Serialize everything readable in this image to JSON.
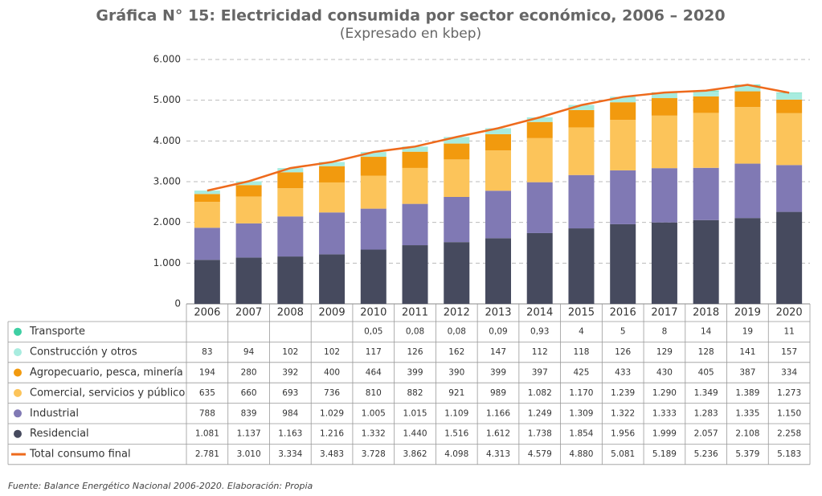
{
  "chart_data": {
    "type": "bar",
    "stacked": true,
    "title": "Gráfica N° 15: Electricidad consumida por sector económico, 2006 – 2020",
    "subtitle": "(Expresado en kbep)",
    "source": "Fuente: Balance Energético Nacional 2006-2020. Elaboración: Propia",
    "categories": [
      "2006",
      "2007",
      "2008",
      "2009",
      "2010",
      "2011",
      "2012",
      "2013",
      "2014",
      "2015",
      "2016",
      "2017",
      "2018",
      "2019",
      "2020"
    ],
    "ylim": [
      0,
      6000
    ],
    "yticks": [
      0,
      {
        "value": 1000,
        "label": "1.000"
      },
      {
        "value": 2000,
        "label": "2.000"
      },
      {
        "value": 3000,
        "label": "3.000"
      },
      {
        "value": 4000,
        "label": "4.000"
      },
      {
        "value": 5000,
        "label": "5.000"
      },
      {
        "value": 6000,
        "label": "6.000"
      }
    ],
    "grid": true,
    "series": [
      {
        "name": "Transporte",
        "color": "#3ecfa3",
        "values": [
          null,
          null,
          null,
          null,
          0.05,
          0.08,
          0.08,
          0.09,
          0.93,
          4,
          5,
          8,
          14,
          19,
          11
        ],
        "value_labels": [
          null,
          null,
          null,
          null,
          "0,05",
          "0,08",
          "0,08",
          "0,09",
          "0,93",
          "4",
          "5",
          "8",
          "14",
          "19",
          "11"
        ]
      },
      {
        "name": "Construcción y otros",
        "color": "#a8ecdf",
        "values": [
          83,
          94,
          102,
          102,
          117,
          126,
          162,
          147,
          112,
          118,
          126,
          129,
          128,
          141,
          157
        ],
        "value_labels": [
          "83",
          "94",
          "102",
          "102",
          "117",
          "126",
          "162",
          "147",
          "112",
          "118",
          "126",
          "129",
          "128",
          "141",
          "157"
        ]
      },
      {
        "name": "Agropecuario, pesca, minería",
        "color": "#f29a0e",
        "values": [
          194,
          280,
          392,
          400,
          464,
          399,
          390,
          399,
          397,
          425,
          433,
          430,
          405,
          387,
          334
        ],
        "value_labels": [
          "194",
          "280",
          "392",
          "400",
          "464",
          "399",
          "390",
          "399",
          "397",
          "425",
          "433",
          "430",
          "405",
          "387",
          "334"
        ]
      },
      {
        "name": "Comercial, servicios y público",
        "color": "#fcc45a",
        "values": [
          635,
          660,
          693,
          736,
          810,
          882,
          921,
          989,
          1082,
          1170,
          1239,
          1290,
          1349,
          1389,
          1273
        ],
        "value_labels": [
          "635",
          "660",
          "693",
          "736",
          "810",
          "882",
          "921",
          "989",
          "1.082",
          "1.170",
          "1.239",
          "1.290",
          "1.349",
          "1.389",
          "1.273"
        ]
      },
      {
        "name": "Industrial",
        "color": "#8079b4",
        "values": [
          788,
          839,
          984,
          1029,
          1005,
          1015,
          1109,
          1166,
          1249,
          1309,
          1322,
          1333,
          1283,
          1335,
          1150
        ],
        "value_labels": [
          "788",
          "839",
          "984",
          "1.029",
          "1.005",
          "1.015",
          "1.109",
          "1.166",
          "1.249",
          "1.309",
          "1.322",
          "1.333",
          "1.283",
          "1.335",
          "1.150"
        ]
      },
      {
        "name": "Residencial",
        "color": "#464a5e",
        "values": [
          1081,
          1137,
          1163,
          1216,
          1332,
          1440,
          1516,
          1612,
          1738,
          1854,
          1956,
          1999,
          2057,
          2108,
          2258
        ],
        "value_labels": [
          "1.081",
          "1.137",
          "1.163",
          "1.216",
          "1.332",
          "1.440",
          "1.516",
          "1.612",
          "1.738",
          "1.854",
          "1.956",
          "1.999",
          "2.057",
          "2.108",
          "2.258"
        ]
      },
      {
        "name": "Total consumo final",
        "type": "line",
        "color": "#ee6a1c",
        "values": [
          2781,
          3010,
          3334,
          3483,
          3728,
          3862,
          4098,
          4313,
          4579,
          4880,
          5081,
          5189,
          5236,
          5379,
          5183
        ],
        "value_labels": [
          "2.781",
          "3.010",
          "3.334",
          "3.483",
          "3.728",
          "3.862",
          "4.098",
          "4.313",
          "4.579",
          "4.880",
          "5.081",
          "5.189",
          "5.236",
          "5.379",
          "5.183"
        ]
      }
    ]
  }
}
